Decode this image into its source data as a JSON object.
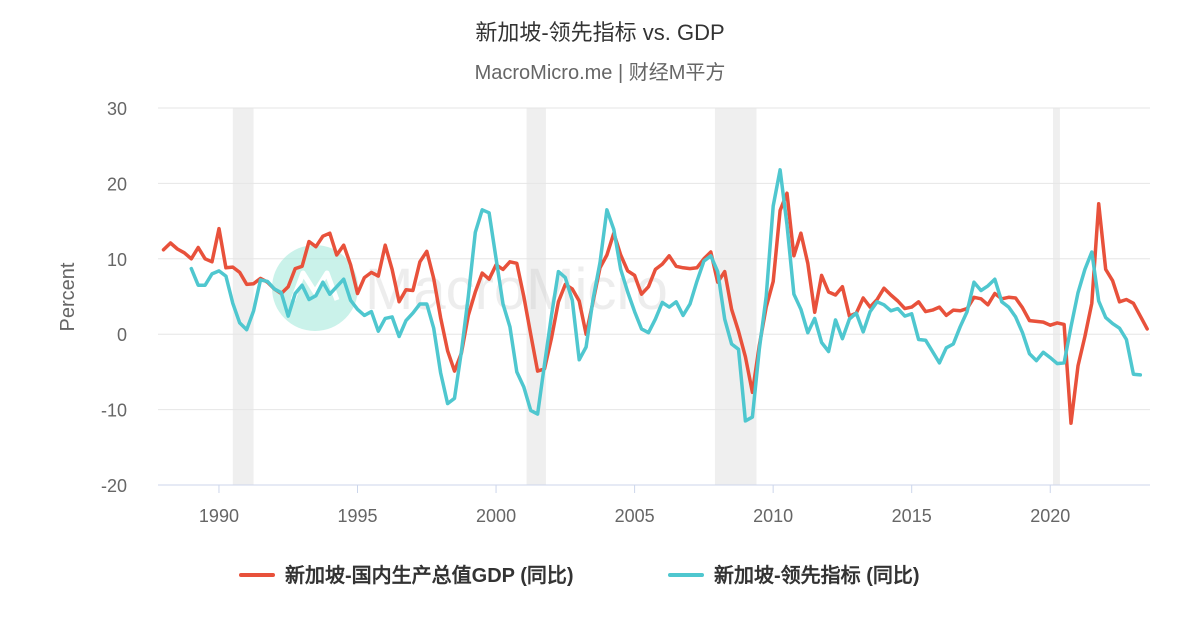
{
  "chart_data": {
    "type": "line",
    "title": "新加坡-领先指标 vs. GDP",
    "subtitle": "MacroMicro.me | 财经M平方",
    "ylabel": "Percent",
    "ylim": [
      -20,
      30
    ],
    "yticks": [
      30,
      20,
      10,
      0,
      -10,
      -20
    ],
    "xlim": [
      1987.8,
      2023.6
    ],
    "xticks": [
      1990,
      1995,
      2000,
      2005,
      2010,
      2015,
      2020
    ],
    "grid": "horizontal",
    "legend_position": "bottom-center",
    "recession_bands": [
      [
        1990.5,
        1991.25
      ],
      [
        2001.1,
        2001.8
      ],
      [
        2007.9,
        2009.4
      ],
      [
        2020.1,
        2020.35
      ]
    ],
    "watermark": "MacroMicro",
    "series": [
      {
        "name": "新加坡-国内生产总值GDP (同比)",
        "color": "#e8513b",
        "points": [
          [
            1988.0,
            11.2
          ],
          [
            1988.25,
            12.1
          ],
          [
            1988.5,
            11.3
          ],
          [
            1988.75,
            10.8
          ],
          [
            1989.0,
            10.0
          ],
          [
            1989.25,
            11.5
          ],
          [
            1989.5,
            10.0
          ],
          [
            1989.75,
            9.6
          ],
          [
            1990.0,
            14.0
          ],
          [
            1990.25,
            8.8
          ],
          [
            1990.5,
            8.9
          ],
          [
            1990.75,
            8.2
          ],
          [
            1991.0,
            6.6
          ],
          [
            1991.25,
            6.7
          ],
          [
            1991.5,
            7.4
          ],
          [
            1991.75,
            6.9
          ],
          [
            1992.0,
            6.0
          ],
          [
            1992.25,
            5.4
          ],
          [
            1992.5,
            6.3
          ],
          [
            1992.75,
            8.7
          ],
          [
            1993.0,
            9.0
          ],
          [
            1993.25,
            12.3
          ],
          [
            1993.5,
            11.6
          ],
          [
            1993.75,
            13.0
          ],
          [
            1994.0,
            13.4
          ],
          [
            1994.25,
            10.5
          ],
          [
            1994.5,
            11.8
          ],
          [
            1994.75,
            9.2
          ],
          [
            1995.0,
            5.4
          ],
          [
            1995.25,
            7.5
          ],
          [
            1995.5,
            8.2
          ],
          [
            1995.75,
            7.7
          ],
          [
            1996.0,
            11.8
          ],
          [
            1996.25,
            8.6
          ],
          [
            1996.5,
            4.3
          ],
          [
            1996.75,
            5.9
          ],
          [
            1997.0,
            5.8
          ],
          [
            1997.25,
            9.6
          ],
          [
            1997.5,
            11.0
          ],
          [
            1997.75,
            7.4
          ],
          [
            1998.0,
            2.2
          ],
          [
            1998.25,
            -2.2
          ],
          [
            1998.5,
            -4.9
          ],
          [
            1998.75,
            -2.5
          ],
          [
            1999.0,
            2.5
          ],
          [
            1999.25,
            5.6
          ],
          [
            1999.5,
            8.1
          ],
          [
            1999.75,
            7.3
          ],
          [
            2000.0,
            9.2
          ],
          [
            2000.25,
            8.6
          ],
          [
            2000.5,
            9.6
          ],
          [
            2000.75,
            9.4
          ],
          [
            2001.0,
            5.0
          ],
          [
            2001.25,
            0.0
          ],
          [
            2001.5,
            -4.9
          ],
          [
            2001.75,
            -4.6
          ],
          [
            2002.0,
            -0.5
          ],
          [
            2002.25,
            4.3
          ],
          [
            2002.5,
            6.6
          ],
          [
            2002.75,
            6.0
          ],
          [
            2003.0,
            4.4
          ],
          [
            2003.25,
            0.0
          ],
          [
            2003.5,
            4.3
          ],
          [
            2003.75,
            8.8
          ],
          [
            2004.0,
            10.5
          ],
          [
            2004.25,
            13.4
          ],
          [
            2004.5,
            10.5
          ],
          [
            2004.75,
            8.4
          ],
          [
            2005.0,
            7.8
          ],
          [
            2005.25,
            5.3
          ],
          [
            2005.5,
            6.3
          ],
          [
            2005.75,
            8.6
          ],
          [
            2006.0,
            9.3
          ],
          [
            2006.25,
            10.4
          ],
          [
            2006.5,
            9.0
          ],
          [
            2006.75,
            8.8
          ],
          [
            2007.0,
            8.7
          ],
          [
            2007.25,
            8.8
          ],
          [
            2007.5,
            10.0
          ],
          [
            2007.75,
            10.9
          ],
          [
            2008.0,
            6.9
          ],
          [
            2008.25,
            8.3
          ],
          [
            2008.5,
            3.3
          ],
          [
            2008.75,
            0.4
          ],
          [
            2009.0,
            -3.0
          ],
          [
            2009.25,
            -7.7
          ],
          [
            2009.5,
            -1.5
          ],
          [
            2009.75,
            3.6
          ],
          [
            2010.0,
            7.0
          ],
          [
            2010.25,
            16.4
          ],
          [
            2010.5,
            18.7
          ],
          [
            2010.75,
            10.4
          ],
          [
            2011.0,
            13.4
          ],
          [
            2011.25,
            9.4
          ],
          [
            2011.5,
            2.9
          ],
          [
            2011.75,
            7.8
          ],
          [
            2012.0,
            5.6
          ],
          [
            2012.25,
            5.2
          ],
          [
            2012.5,
            6.3
          ],
          [
            2012.75,
            2.4
          ],
          [
            2013.0,
            2.8
          ],
          [
            2013.25,
            4.8
          ],
          [
            2013.5,
            3.6
          ],
          [
            2013.75,
            4.6
          ],
          [
            2014.0,
            6.1
          ],
          [
            2014.25,
            5.2
          ],
          [
            2014.5,
            4.4
          ],
          [
            2014.75,
            3.4
          ],
          [
            2015.0,
            3.6
          ],
          [
            2015.25,
            4.3
          ],
          [
            2015.5,
            3.0
          ],
          [
            2015.75,
            3.2
          ],
          [
            2016.0,
            3.6
          ],
          [
            2016.25,
            2.5
          ],
          [
            2016.5,
            3.2
          ],
          [
            2016.75,
            3.1
          ],
          [
            2017.0,
            3.4
          ],
          [
            2017.25,
            4.9
          ],
          [
            2017.5,
            4.7
          ],
          [
            2017.75,
            3.9
          ],
          [
            2018.0,
            5.4
          ],
          [
            2018.25,
            4.7
          ],
          [
            2018.5,
            4.9
          ],
          [
            2018.75,
            4.8
          ],
          [
            2019.0,
            3.5
          ],
          [
            2019.25,
            1.8
          ],
          [
            2019.5,
            1.7
          ],
          [
            2019.75,
            1.6
          ],
          [
            2020.0,
            1.2
          ],
          [
            2020.25,
            1.5
          ],
          [
            2020.5,
            1.3
          ],
          [
            2020.75,
            -11.8
          ],
          [
            2021.0,
            -4.2
          ],
          [
            2021.25,
            -0.3
          ],
          [
            2021.5,
            4.1
          ],
          [
            2021.75,
            17.3
          ],
          [
            2022.0,
            8.6
          ],
          [
            2022.25,
            7.1
          ],
          [
            2022.5,
            4.3
          ],
          [
            2022.75,
            4.6
          ],
          [
            2023.0,
            4.1
          ],
          [
            2023.25,
            2.4
          ],
          [
            2023.5,
            0.7
          ]
        ]
      },
      {
        "name": "新加坡-领先指标 (同比)",
        "color": "#4fc7cf",
        "points": [
          [
            1989.0,
            8.7
          ],
          [
            1989.25,
            6.5
          ],
          [
            1989.5,
            6.5
          ],
          [
            1989.75,
            8.0
          ],
          [
            1990.0,
            8.4
          ],
          [
            1990.25,
            7.7
          ],
          [
            1990.5,
            4.1
          ],
          [
            1990.75,
            1.5
          ],
          [
            1991.0,
            0.6
          ],
          [
            1991.25,
            3.1
          ],
          [
            1991.5,
            7.2
          ],
          [
            1991.75,
            7.0
          ],
          [
            1992.0,
            6.0
          ],
          [
            1992.25,
            5.5
          ],
          [
            1992.5,
            2.4
          ],
          [
            1992.75,
            5.4
          ],
          [
            1993.0,
            6.5
          ],
          [
            1993.25,
            4.6
          ],
          [
            1993.5,
            5.1
          ],
          [
            1993.75,
            6.9
          ],
          [
            1994.0,
            5.3
          ],
          [
            1994.25,
            6.3
          ],
          [
            1994.5,
            7.3
          ],
          [
            1994.75,
            4.5
          ],
          [
            1995.0,
            3.3
          ],
          [
            1995.25,
            2.5
          ],
          [
            1995.5,
            3.0
          ],
          [
            1995.75,
            0.4
          ],
          [
            1996.0,
            2.1
          ],
          [
            1996.25,
            2.3
          ],
          [
            1996.5,
            -0.3
          ],
          [
            1996.75,
            1.8
          ],
          [
            1997.0,
            2.8
          ],
          [
            1997.25,
            4.0
          ],
          [
            1997.5,
            4.0
          ],
          [
            1997.75,
            0.8
          ],
          [
            1998.0,
            -5.1
          ],
          [
            1998.25,
            -9.2
          ],
          [
            1998.5,
            -8.5
          ],
          [
            1998.75,
            -2.3
          ],
          [
            1999.0,
            5.0
          ],
          [
            1999.25,
            13.5
          ],
          [
            1999.5,
            16.5
          ],
          [
            1999.75,
            16.1
          ],
          [
            2000.0,
            10.0
          ],
          [
            2000.25,
            4.0
          ],
          [
            2000.5,
            1.0
          ],
          [
            2000.75,
            -5.0
          ],
          [
            2001.0,
            -7.0
          ],
          [
            2001.25,
            -10.1
          ],
          [
            2001.5,
            -10.6
          ],
          [
            2001.75,
            -4.0
          ],
          [
            2002.0,
            2.5
          ],
          [
            2002.25,
            8.3
          ],
          [
            2002.5,
            7.5
          ],
          [
            2002.75,
            4.5
          ],
          [
            2003.0,
            -3.4
          ],
          [
            2003.25,
            -1.7
          ],
          [
            2003.5,
            4.6
          ],
          [
            2003.75,
            9.5
          ],
          [
            2004.0,
            16.5
          ],
          [
            2004.25,
            13.9
          ],
          [
            2004.5,
            8.6
          ],
          [
            2004.75,
            5.6
          ],
          [
            2005.0,
            3.0
          ],
          [
            2005.25,
            0.7
          ],
          [
            2005.5,
            0.2
          ],
          [
            2005.75,
            2.0
          ],
          [
            2006.0,
            4.2
          ],
          [
            2006.25,
            3.6
          ],
          [
            2006.5,
            4.3
          ],
          [
            2006.75,
            2.5
          ],
          [
            2007.0,
            4.0
          ],
          [
            2007.25,
            7.0
          ],
          [
            2007.5,
            9.7
          ],
          [
            2007.75,
            10.4
          ],
          [
            2008.0,
            8.3
          ],
          [
            2008.25,
            2.0
          ],
          [
            2008.5,
            -1.3
          ],
          [
            2008.75,
            -2.0
          ],
          [
            2009.0,
            -11.5
          ],
          [
            2009.25,
            -11.0
          ],
          [
            2009.5,
            -2.0
          ],
          [
            2009.75,
            5.0
          ],
          [
            2010.0,
            17.0
          ],
          [
            2010.25,
            21.8
          ],
          [
            2010.5,
            14.5
          ],
          [
            2010.75,
            5.3
          ],
          [
            2011.0,
            3.3
          ],
          [
            2011.25,
            0.2
          ],
          [
            2011.5,
            2.1
          ],
          [
            2011.75,
            -1.1
          ],
          [
            2012.0,
            -2.3
          ],
          [
            2012.25,
            1.9
          ],
          [
            2012.5,
            -0.6
          ],
          [
            2012.75,
            2.0
          ],
          [
            2013.0,
            2.8
          ],
          [
            2013.25,
            0.3
          ],
          [
            2013.5,
            3.0
          ],
          [
            2013.75,
            4.3
          ],
          [
            2014.0,
            3.9
          ],
          [
            2014.25,
            3.1
          ],
          [
            2014.5,
            3.4
          ],
          [
            2014.75,
            2.4
          ],
          [
            2015.0,
            2.7
          ],
          [
            2015.25,
            -0.7
          ],
          [
            2015.5,
            -0.8
          ],
          [
            2015.75,
            -2.3
          ],
          [
            2016.0,
            -3.8
          ],
          [
            2016.25,
            -1.8
          ],
          [
            2016.5,
            -1.3
          ],
          [
            2016.75,
            1.0
          ],
          [
            2017.0,
            3.0
          ],
          [
            2017.25,
            6.9
          ],
          [
            2017.5,
            5.8
          ],
          [
            2017.75,
            6.4
          ],
          [
            2018.0,
            7.3
          ],
          [
            2018.25,
            4.3
          ],
          [
            2018.5,
            3.6
          ],
          [
            2018.75,
            2.3
          ],
          [
            2019.0,
            0.2
          ],
          [
            2019.25,
            -2.6
          ],
          [
            2019.5,
            -3.5
          ],
          [
            2019.75,
            -2.4
          ],
          [
            2020.0,
            -3.1
          ],
          [
            2020.25,
            -3.9
          ],
          [
            2020.5,
            -3.8
          ],
          [
            2020.75,
            1.0
          ],
          [
            2021.0,
            5.5
          ],
          [
            2021.25,
            8.6
          ],
          [
            2021.5,
            10.9
          ],
          [
            2021.75,
            4.4
          ],
          [
            2022.0,
            2.2
          ],
          [
            2022.25,
            1.4
          ],
          [
            2022.5,
            0.8
          ],
          [
            2022.75,
            -0.7
          ],
          [
            2023.0,
            -5.3
          ],
          [
            2023.25,
            -5.4
          ]
        ]
      }
    ]
  }
}
